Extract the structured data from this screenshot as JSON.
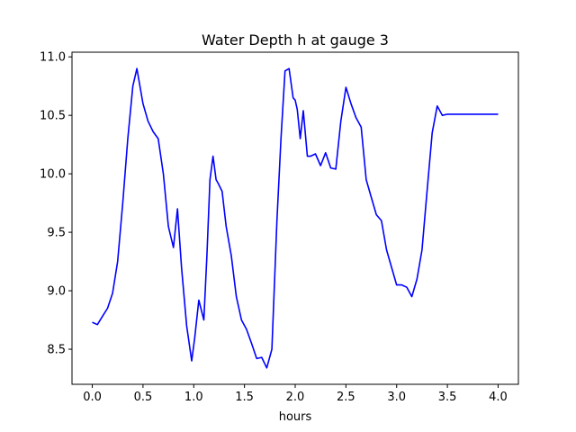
{
  "chart_data": {
    "type": "line",
    "title": "Water Depth h at gauge 3",
    "xlabel": "hours",
    "ylabel": "",
    "xlim": [
      -0.2,
      4.2
    ],
    "ylim": [
      8.2,
      11.04
    ],
    "xticks": [
      0.0,
      0.5,
      1.0,
      1.5,
      2.0,
      2.5,
      3.0,
      3.5,
      4.0
    ],
    "xtick_labels": [
      "0.0",
      "0.5",
      "1.0",
      "1.5",
      "2.0",
      "2.5",
      "3.0",
      "3.5",
      "4.0"
    ],
    "yticks": [
      8.5,
      9.0,
      9.5,
      10.0,
      10.5,
      11.0
    ],
    "ytick_labels": [
      "8.5",
      "9.0",
      "9.5",
      "10.0",
      "10.5",
      "11.0"
    ],
    "grid": false,
    "series": [
      {
        "name": "",
        "color": "#0000ff",
        "x": [
          0.0,
          0.05,
          0.1,
          0.15,
          0.2,
          0.25,
          0.3,
          0.35,
          0.4,
          0.44,
          0.5,
          0.55,
          0.6,
          0.65,
          0.7,
          0.75,
          0.8,
          0.84,
          0.88,
          0.93,
          0.98,
          1.01,
          1.05,
          1.07,
          1.1,
          1.13,
          1.16,
          1.19,
          1.22,
          1.24,
          1.28,
          1.32,
          1.37,
          1.42,
          1.47,
          1.52,
          1.57,
          1.62,
          1.67,
          1.72,
          1.77,
          1.82,
          1.86,
          1.9,
          1.94,
          1.98,
          2.0,
          2.02,
          2.05,
          2.08,
          2.12,
          2.15,
          2.2,
          2.25,
          2.3,
          2.35,
          2.4,
          2.45,
          2.5,
          2.55,
          2.6,
          2.65,
          2.7,
          2.75,
          2.8,
          2.85,
          2.9,
          2.95,
          3.0,
          3.05,
          3.1,
          3.15,
          3.2,
          3.25,
          3.3,
          3.35,
          3.4,
          3.45,
          3.5,
          3.55,
          3.6,
          3.65,
          3.7,
          3.75,
          3.8,
          3.85,
          3.9,
          3.95,
          4.0
        ],
        "y": [
          8.73,
          8.71,
          8.78,
          8.85,
          8.98,
          9.25,
          9.75,
          10.3,
          10.75,
          10.9,
          10.6,
          10.45,
          10.36,
          10.3,
          10.0,
          9.55,
          9.37,
          9.7,
          9.2,
          8.7,
          8.4,
          8.6,
          8.92,
          8.85,
          8.75,
          9.3,
          9.95,
          10.15,
          9.95,
          9.92,
          9.85,
          9.55,
          9.3,
          8.95,
          8.75,
          8.67,
          8.55,
          8.42,
          8.43,
          8.34,
          8.5,
          9.6,
          10.3,
          10.88,
          10.9,
          10.65,
          10.63,
          10.55,
          10.3,
          10.54,
          10.15,
          10.15,
          10.17,
          10.07,
          10.18,
          10.05,
          10.04,
          10.45,
          10.74,
          10.6,
          10.48,
          10.4,
          9.95,
          9.8,
          9.65,
          9.6,
          9.35,
          9.2,
          9.05,
          9.05,
          9.03,
          8.95,
          9.1,
          9.35,
          9.85,
          10.35,
          10.58,
          10.5,
          10.51,
          10.51,
          10.51,
          10.51,
          10.51,
          10.51,
          10.51,
          10.51,
          10.51,
          10.51,
          10.51
        ]
      }
    ]
  }
}
